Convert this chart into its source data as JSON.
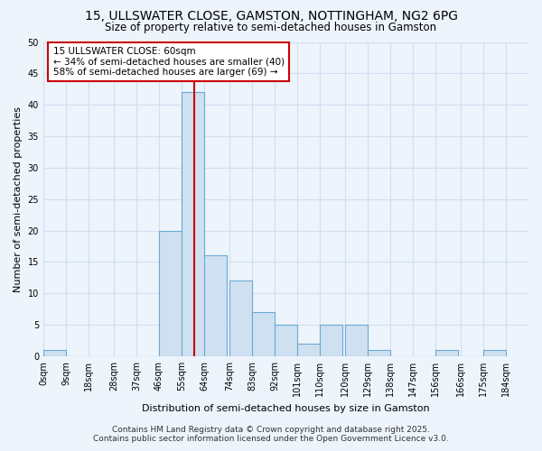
{
  "title": "15, ULLSWATER CLOSE, GAMSTON, NOTTINGHAM, NG2 6PG",
  "subtitle": "Size of property relative to semi-detached houses in Gamston",
  "xlabel": "Distribution of semi-detached houses by size in Gamston",
  "ylabel": "Number of semi-detached properties",
  "bar_edges": [
    0,
    9,
    18,
    28,
    37,
    46,
    55,
    64,
    74,
    83,
    92,
    101,
    110,
    120,
    129,
    138,
    147,
    156,
    166,
    175,
    184
  ],
  "bar_heights": [
    1,
    0,
    0,
    0,
    0,
    20,
    42,
    16,
    12,
    7,
    5,
    2,
    5,
    5,
    1,
    0,
    0,
    1,
    0,
    1
  ],
  "tick_labels": [
    "0sqm",
    "9sqm",
    "18sqm",
    "28sqm",
    "37sqm",
    "46sqm",
    "55sqm",
    "64sqm",
    "74sqm",
    "83sqm",
    "92sqm",
    "101sqm",
    "110sqm",
    "120sqm",
    "129sqm",
    "138sqm",
    "147sqm",
    "156sqm",
    "166sqm",
    "175sqm",
    "184sqm"
  ],
  "bar_color": "#cfe0f0",
  "bar_edge_color": "#6aaad4",
  "property_line_x": 60,
  "property_line_color": "#cc0000",
  "ylim": [
    0,
    50
  ],
  "yticks": [
    0,
    5,
    10,
    15,
    20,
    25,
    30,
    35,
    40,
    45,
    50
  ],
  "annotation_title": "15 ULLSWATER CLOSE: 60sqm",
  "annotation_line1": "← 34% of semi-detached houses are smaller (40)",
  "annotation_line2": "58% of semi-detached houses are larger (69) →",
  "annotation_box_color": "#ffffff",
  "annotation_box_edge": "#cc0000",
  "footer_line1": "Contains HM Land Registry data © Crown copyright and database right 2025.",
  "footer_line2": "Contains public sector information licensed under the Open Government Licence v3.0.",
  "bg_color": "#edf4fc",
  "plot_bg_color": "#edf4fc",
  "grid_color": "#d0dff0",
  "title_fontsize": 10,
  "subtitle_fontsize": 8.5,
  "axis_label_fontsize": 8,
  "tick_fontsize": 7,
  "annotation_fontsize": 7.5,
  "footer_fontsize": 6.5
}
